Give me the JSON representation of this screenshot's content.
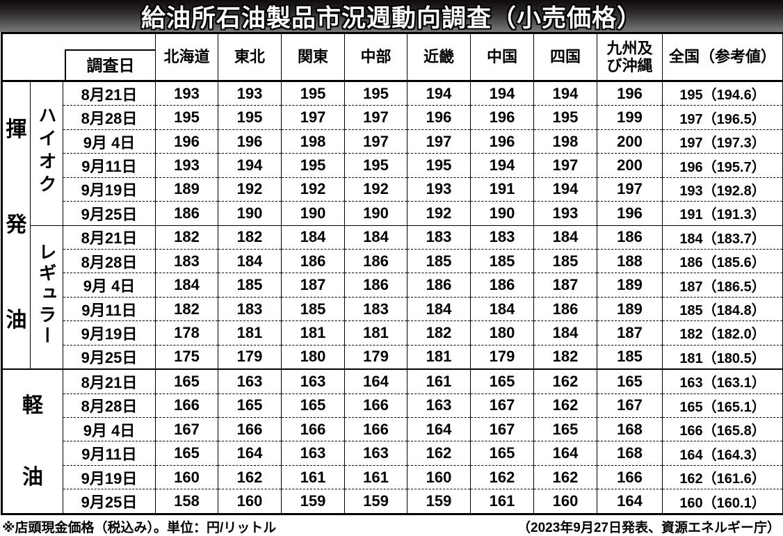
{
  "title": "給油所石油製品市況週動向調査（小売価格）",
  "header": {
    "date_label": "調査日",
    "regions": [
      "北海道",
      "東北",
      "関東",
      "中部",
      "近畿",
      "中国",
      "四国",
      "九州及\nび沖縄",
      "全国（参考値）"
    ]
  },
  "chart_data": {
    "type": "table",
    "title": "給油所石油製品市況週動向調査（小売価格）",
    "columns": [
      "調査日",
      "北海道",
      "東北",
      "関東",
      "中部",
      "近畿",
      "中国",
      "四国",
      "九州及び沖縄",
      "全国（参考値）"
    ],
    "unit": "円/リットル"
  },
  "groups": [
    {
      "fuel": "揮発油",
      "subgroups": [
        {
          "name": "ハイオク",
          "rows": [
            {
              "date": "8月21日",
              "values": [
                "193",
                "193",
                "195",
                "195",
                "194",
                "194",
                "194",
                "196",
                "195（194.6）"
              ]
            },
            {
              "date": "8月28日",
              "values": [
                "195",
                "195",
                "197",
                "197",
                "196",
                "196",
                "195",
                "199",
                "197（196.5）"
              ]
            },
            {
              "date": "9月 4日",
              "values": [
                "196",
                "196",
                "198",
                "197",
                "197",
                "196",
                "198",
                "200",
                "197（197.3）"
              ]
            },
            {
              "date": "9月11日",
              "values": [
                "193",
                "194",
                "195",
                "195",
                "195",
                "194",
                "197",
                "200",
                "196（195.7）"
              ]
            },
            {
              "date": "9月19日",
              "values": [
                "189",
                "192",
                "192",
                "192",
                "193",
                "191",
                "194",
                "197",
                "193（192.8）"
              ]
            },
            {
              "date": "9月25日",
              "values": [
                "186",
                "190",
                "190",
                "190",
                "192",
                "190",
                "193",
                "196",
                "191（191.3）"
              ]
            }
          ]
        },
        {
          "name": "レギュラー",
          "rows": [
            {
              "date": "8月21日",
              "values": [
                "182",
                "182",
                "184",
                "184",
                "183",
                "183",
                "184",
                "186",
                "184（183.7）"
              ]
            },
            {
              "date": "8月28日",
              "values": [
                "183",
                "184",
                "186",
                "186",
                "185",
                "185",
                "185",
                "188",
                "186（185.6）"
              ]
            },
            {
              "date": "9月 4日",
              "values": [
                "184",
                "185",
                "187",
                "186",
                "186",
                "186",
                "187",
                "189",
                "187（186.5）"
              ]
            },
            {
              "date": "9月11日",
              "values": [
                "182",
                "183",
                "185",
                "183",
                "184",
                "184",
                "186",
                "189",
                "185（184.8）"
              ]
            },
            {
              "date": "9月19日",
              "values": [
                "178",
                "181",
                "181",
                "181",
                "182",
                "180",
                "184",
                "187",
                "182（182.0）"
              ]
            },
            {
              "date": "9月25日",
              "values": [
                "175",
                "179",
                "180",
                "179",
                "181",
                "179",
                "182",
                "185",
                "181（180.5）"
              ]
            }
          ]
        }
      ]
    },
    {
      "fuel": "軽油",
      "rows": [
        {
          "date": "8月21日",
          "values": [
            "165",
            "163",
            "163",
            "164",
            "161",
            "165",
            "162",
            "165",
            "163（163.1）"
          ]
        },
        {
          "date": "8月28日",
          "values": [
            "166",
            "165",
            "165",
            "166",
            "163",
            "167",
            "162",
            "167",
            "165（165.1）"
          ]
        },
        {
          "date": "9月 4日",
          "values": [
            "167",
            "166",
            "166",
            "166",
            "164",
            "167",
            "165",
            "168",
            "166（165.8）"
          ]
        },
        {
          "date": "9月11日",
          "values": [
            "165",
            "164",
            "163",
            "163",
            "162",
            "165",
            "164",
            "168",
            "164（164.3）"
          ]
        },
        {
          "date": "9月19日",
          "values": [
            "160",
            "162",
            "161",
            "161",
            "160",
            "162",
            "162",
            "166",
            "162（161.6）"
          ]
        },
        {
          "date": "9月25日",
          "values": [
            "158",
            "160",
            "159",
            "159",
            "159",
            "161",
            "160",
            "164",
            "160（160.1）"
          ]
        }
      ]
    }
  ],
  "footer": {
    "left": "※店頭現金価格（税込み）。単位：円/リットル",
    "right": "（2023年9月27日発表、資源エネルギー庁）"
  }
}
